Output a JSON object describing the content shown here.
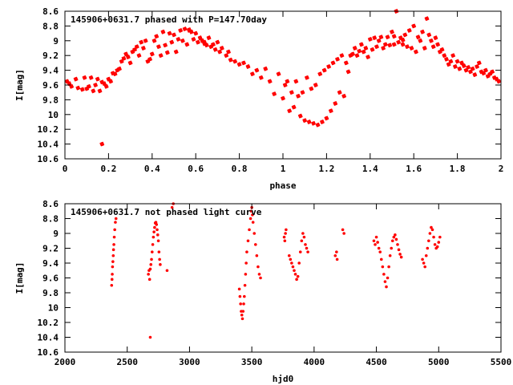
{
  "chart_data": [
    {
      "type": "scatter",
      "title": "145906+0631.7 phased with P=147.70day",
      "xlabel": "phase",
      "ylabel": "I[mag]",
      "xlim": [
        0,
        2
      ],
      "ylim": [
        10.6,
        8.6
      ],
      "y_inverted": true,
      "xticks": [
        "0",
        "0.2",
        "0.4",
        "0.6",
        "0.8",
        "1",
        "1.2",
        "1.4",
        "1.6",
        "1.8",
        "2"
      ],
      "yticks": [
        "8.6",
        "8.8",
        "9",
        "9.2",
        "9.4",
        "9.6",
        "9.8",
        "10",
        "10.2",
        "10.4",
        "10.6"
      ],
      "color": "#ff0000",
      "marker": "filled-star",
      "points": [
        [
          0.01,
          9.55
        ],
        [
          0.02,
          9.58
        ],
        [
          0.03,
          9.62
        ],
        [
          0.05,
          9.52
        ],
        [
          0.06,
          9.64
        ],
        [
          0.08,
          9.66
        ],
        [
          0.09,
          9.5
        ],
        [
          0.1,
          9.65
        ],
        [
          0.11,
          9.62
        ],
        [
          0.12,
          9.5
        ],
        [
          0.13,
          9.68
        ],
        [
          0.14,
          9.6
        ],
        [
          0.15,
          9.52
        ],
        [
          0.16,
          9.68
        ],
        [
          0.17,
          9.56
        ],
        [
          0.18,
          9.58
        ],
        [
          0.19,
          9.62
        ],
        [
          0.2,
          9.52
        ],
        [
          0.21,
          9.55
        ],
        [
          0.22,
          9.44
        ],
        [
          0.23,
          9.45
        ],
        [
          0.24,
          9.4
        ],
        [
          0.25,
          9.38
        ],
        [
          0.26,
          9.28
        ],
        [
          0.27,
          9.24
        ],
        [
          0.28,
          9.18
        ],
        [
          0.29,
          9.22
        ],
        [
          0.3,
          9.3
        ],
        [
          0.31,
          9.15
        ],
        [
          0.32,
          9.12
        ],
        [
          0.33,
          9.08
        ],
        [
          0.34,
          9.2
        ],
        [
          0.35,
          9.02
        ],
        [
          0.36,
          9.1
        ],
        [
          0.37,
          9.0
        ],
        [
          0.38,
          9.28
        ],
        [
          0.39,
          9.25
        ],
        [
          0.4,
          9.18
        ],
        [
          0.41,
          9.0
        ],
        [
          0.42,
          8.94
        ],
        [
          0.43,
          9.08
        ],
        [
          0.44,
          9.2
        ],
        [
          0.45,
          8.88
        ],
        [
          0.46,
          9.06
        ],
        [
          0.47,
          9.16
        ],
        [
          0.48,
          8.9
        ],
        [
          0.49,
          9.02
        ],
        [
          0.5,
          8.92
        ],
        [
          0.51,
          9.15
        ],
        [
          0.52,
          8.98
        ],
        [
          0.53,
          8.86
        ],
        [
          0.54,
          9.0
        ],
        [
          0.55,
          8.84
        ],
        [
          0.56,
          9.05
        ],
        [
          0.57,
          8.85
        ],
        [
          0.58,
          8.88
        ],
        [
          0.59,
          8.98
        ],
        [
          0.6,
          8.9
        ],
        [
          0.61,
          9.02
        ],
        [
          0.62,
          8.96
        ],
        [
          0.63,
          9.0
        ],
        [
          0.64,
          9.04
        ],
        [
          0.65,
          9.06
        ],
        [
          0.66,
          8.96
        ],
        [
          0.67,
          9.08
        ],
        [
          0.68,
          9.05
        ],
        [
          0.69,
          9.12
        ],
        [
          0.7,
          9.02
        ],
        [
          0.71,
          9.15
        ],
        [
          0.72,
          9.1
        ],
        [
          0.74,
          9.2
        ],
        [
          0.75,
          9.15
        ],
        [
          0.76,
          9.26
        ],
        [
          0.78,
          9.28
        ],
        [
          0.8,
          9.32
        ],
        [
          0.82,
          9.3
        ],
        [
          0.84,
          9.35
        ],
        [
          0.86,
          9.45
        ],
        [
          0.88,
          9.4
        ],
        [
          0.9,
          9.5
        ],
        [
          0.92,
          9.38
        ],
        [
          0.94,
          9.55
        ],
        [
          0.96,
          9.72
        ],
        [
          0.98,
          9.45
        ],
        [
          1.0,
          9.78
        ],
        [
          1.01,
          9.6
        ],
        [
          1.02,
          9.55
        ],
        [
          1.03,
          9.95
        ],
        [
          1.04,
          9.7
        ],
        [
          1.05,
          9.9
        ],
        [
          1.06,
          9.55
        ],
        [
          1.07,
          9.75
        ],
        [
          1.08,
          10.02
        ],
        [
          1.09,
          9.7
        ],
        [
          1.1,
          10.08
        ],
        [
          1.11,
          9.5
        ],
        [
          1.12,
          10.1
        ],
        [
          1.13,
          9.65
        ],
        [
          1.14,
          10.12
        ],
        [
          1.15,
          9.6
        ],
        [
          1.16,
          10.14
        ],
        [
          1.17,
          9.45
        ],
        [
          1.18,
          10.1
        ],
        [
          1.19,
          9.4
        ],
        [
          1.2,
          10.05
        ],
        [
          1.21,
          9.35
        ],
        [
          1.22,
          9.95
        ],
        [
          1.23,
          9.3
        ],
        [
          1.24,
          9.85
        ],
        [
          1.25,
          9.25
        ],
        [
          1.26,
          9.7
        ],
        [
          1.27,
          9.2
        ],
        [
          1.28,
          9.75
        ],
        [
          1.29,
          9.3
        ],
        [
          1.3,
          9.42
        ],
        [
          1.31,
          9.2
        ],
        [
          1.32,
          9.18
        ],
        [
          1.33,
          9.1
        ],
        [
          1.34,
          9.2
        ],
        [
          1.35,
          9.14
        ],
        [
          1.36,
          9.05
        ],
        [
          1.37,
          9.15
        ],
        [
          1.38,
          9.1
        ],
        [
          1.39,
          9.22
        ],
        [
          1.4,
          8.98
        ],
        [
          1.41,
          9.12
        ],
        [
          1.42,
          8.96
        ],
        [
          1.43,
          9.08
        ],
        [
          1.44,
          9.0
        ],
        [
          1.45,
          8.95
        ],
        [
          1.46,
          9.1
        ],
        [
          1.47,
          9.05
        ],
        [
          1.48,
          8.95
        ],
        [
          1.49,
          9.06
        ],
        [
          1.5,
          8.88
        ],
        [
          1.51,
          9.05
        ],
        [
          1.52,
          8.6
        ],
        [
          1.53,
          9.02
        ],
        [
          1.54,
          8.96
        ],
        [
          1.55,
          9.05
        ],
        [
          1.56,
          8.92
        ],
        [
          1.57,
          9.08
        ],
        [
          1.58,
          8.86
        ],
        [
          1.59,
          9.1
        ],
        [
          1.6,
          8.8
        ],
        [
          1.61,
          9.15
        ],
        [
          1.62,
          8.95
        ],
        [
          1.63,
          9.0
        ],
        [
          1.64,
          8.88
        ],
        [
          1.65,
          9.1
        ],
        [
          1.66,
          8.7
        ],
        [
          1.67,
          8.92
        ],
        [
          1.68,
          9.0
        ],
        [
          1.69,
          9.08
        ],
        [
          1.7,
          8.96
        ],
        [
          1.71,
          9.05
        ],
        [
          1.72,
          9.15
        ],
        [
          1.73,
          9.12
        ],
        [
          1.74,
          9.2
        ],
        [
          1.75,
          9.25
        ],
        [
          1.76,
          9.32
        ],
        [
          1.77,
          9.28
        ],
        [
          1.78,
          9.2
        ],
        [
          1.79,
          9.35
        ],
        [
          1.8,
          9.28
        ],
        [
          1.81,
          9.38
        ],
        [
          1.82,
          9.3
        ],
        [
          1.83,
          9.34
        ],
        [
          1.84,
          9.4
        ],
        [
          1.85,
          9.36
        ],
        [
          1.86,
          9.42
        ],
        [
          1.87,
          9.38
        ],
        [
          1.88,
          9.46
        ],
        [
          1.89,
          9.35
        ],
        [
          1.9,
          9.3
        ],
        [
          1.91,
          9.42
        ],
        [
          1.92,
          9.44
        ],
        [
          1.93,
          9.4
        ],
        [
          1.94,
          9.48
        ],
        [
          1.95,
          9.45
        ],
        [
          1.96,
          9.42
        ],
        [
          1.97,
          9.5
        ],
        [
          1.98,
          9.52
        ],
        [
          1.99,
          9.55
        ],
        [
          0.17,
          10.4
        ],
        [
          0.57,
          8.86
        ],
        [
          0.64,
          9.02
        ],
        [
          1.51,
          8.94
        ],
        [
          1.55,
          8.99
        ]
      ]
    },
    {
      "type": "scatter",
      "title": "145906+0631.7 not phased light curve",
      "xlabel": "hjd0",
      "ylabel": "I[mag]",
      "xlim": [
        2000,
        5500
      ],
      "ylim": [
        10.6,
        8.6
      ],
      "y_inverted": true,
      "xticks": [
        "2000",
        "2500",
        "3000",
        "3500",
        "4000",
        "4500",
        "5000",
        "5500"
      ],
      "yticks": [
        "8.6",
        "8.8",
        "9",
        "9.2",
        "9.4",
        "9.6",
        "9.8",
        "10",
        "10.2",
        "10.4",
        "10.6"
      ],
      "color": "#ff0000",
      "marker": "dot",
      "points": [
        [
          2375,
          9.7
        ],
        [
          2378,
          9.62
        ],
        [
          2380,
          9.55
        ],
        [
          2382,
          9.45
        ],
        [
          2385,
          9.38
        ],
        [
          2388,
          9.3
        ],
        [
          2390,
          9.22
        ],
        [
          2393,
          9.15
        ],
        [
          2396,
          9.05
        ],
        [
          2400,
          8.95
        ],
        [
          2405,
          8.85
        ],
        [
          2410,
          8.8
        ],
        [
          2670,
          9.55
        ],
        [
          2675,
          9.5
        ],
        [
          2680,
          9.62
        ],
        [
          2685,
          9.48
        ],
        [
          2690,
          9.42
        ],
        [
          2695,
          9.35
        ],
        [
          2700,
          9.25
        ],
        [
          2705,
          9.15
        ],
        [
          2710,
          9.05
        ],
        [
          2715,
          8.98
        ],
        [
          2720,
          8.92
        ],
        [
          2725,
          8.86
        ],
        [
          2730,
          8.85
        ],
        [
          2735,
          8.88
        ],
        [
          2740,
          8.95
        ],
        [
          2745,
          9.02
        ],
        [
          2750,
          9.1
        ],
        [
          2755,
          9.25
        ],
        [
          2760,
          9.35
        ],
        [
          2765,
          9.42
        ],
        [
          2685,
          10.4
        ],
        [
          2820,
          9.5
        ],
        [
          2860,
          8.65
        ],
        [
          2870,
          8.6
        ],
        [
          3400,
          9.75
        ],
        [
          3405,
          9.85
        ],
        [
          3410,
          9.95
        ],
        [
          3415,
          10.05
        ],
        [
          3420,
          10.1
        ],
        [
          3425,
          10.15
        ],
        [
          3430,
          10.05
        ],
        [
          3435,
          9.95
        ],
        [
          3440,
          9.85
        ],
        [
          3445,
          9.7
        ],
        [
          3450,
          9.55
        ],
        [
          3455,
          9.4
        ],
        [
          3460,
          9.25
        ],
        [
          3470,
          9.1
        ],
        [
          3480,
          8.95
        ],
        [
          3490,
          8.8
        ],
        [
          3495,
          8.7
        ],
        [
          3500,
          8.65
        ],
        [
          3505,
          8.75
        ],
        [
          3510,
          8.85
        ],
        [
          3520,
          9.0
        ],
        [
          3530,
          9.15
        ],
        [
          3540,
          9.3
        ],
        [
          3550,
          9.45
        ],
        [
          3560,
          9.55
        ],
        [
          3570,
          9.6
        ],
        [
          3760,
          9.05
        ],
        [
          3765,
          9.1
        ],
        [
          3770,
          9.0
        ],
        [
          3775,
          8.95
        ],
        [
          3800,
          9.3
        ],
        [
          3810,
          9.35
        ],
        [
          3820,
          9.4
        ],
        [
          3830,
          9.45
        ],
        [
          3840,
          9.5
        ],
        [
          3850,
          9.55
        ],
        [
          3860,
          9.62
        ],
        [
          3870,
          9.58
        ],
        [
          3880,
          9.4
        ],
        [
          3890,
          9.25
        ],
        [
          3900,
          9.1
        ],
        [
          3910,
          9.0
        ],
        [
          3920,
          9.05
        ],
        [
          3930,
          9.15
        ],
        [
          3940,
          9.2
        ],
        [
          3950,
          9.25
        ],
        [
          4170,
          9.3
        ],
        [
          4180,
          9.25
        ],
        [
          4185,
          9.35
        ],
        [
          4230,
          8.95
        ],
        [
          4240,
          9.0
        ],
        [
          4480,
          9.1
        ],
        [
          4490,
          9.15
        ],
        [
          4500,
          9.05
        ],
        [
          4510,
          9.12
        ],
        [
          4520,
          9.2
        ],
        [
          4530,
          9.25
        ],
        [
          4540,
          9.35
        ],
        [
          4550,
          9.45
        ],
        [
          4560,
          9.55
        ],
        [
          4570,
          9.65
        ],
        [
          4580,
          9.72
        ],
        [
          4590,
          9.6
        ],
        [
          4600,
          9.45
        ],
        [
          4610,
          9.3
        ],
        [
          4620,
          9.2
        ],
        [
          4630,
          9.1
        ],
        [
          4640,
          9.05
        ],
        [
          4650,
          9.02
        ],
        [
          4660,
          9.08
        ],
        [
          4670,
          9.15
        ],
        [
          4680,
          9.22
        ],
        [
          4690,
          9.28
        ],
        [
          4700,
          9.32
        ],
        [
          4870,
          9.35
        ],
        [
          4880,
          9.4
        ],
        [
          4890,
          9.45
        ],
        [
          4900,
          9.3
        ],
        [
          4910,
          9.2
        ],
        [
          4920,
          9.1
        ],
        [
          4930,
          9.0
        ],
        [
          4940,
          8.92
        ],
        [
          4950,
          8.95
        ],
        [
          4960,
          9.05
        ],
        [
          4970,
          9.15
        ],
        [
          4980,
          9.2
        ],
        [
          4990,
          9.18
        ],
        [
          5000,
          9.12
        ],
        [
          5010,
          9.05
        ]
      ]
    }
  ]
}
